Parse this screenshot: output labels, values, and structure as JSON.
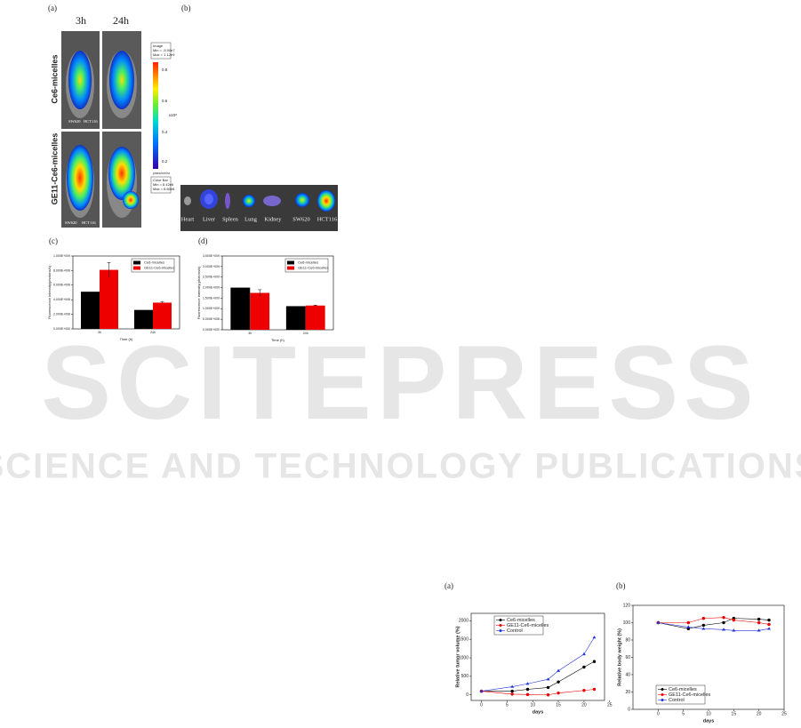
{
  "figure_a": {
    "label": "(a)",
    "columns": [
      "3h",
      "24h"
    ],
    "rows": [
      "Ce6-micelles",
      "GE11-Ce6-micelles"
    ],
    "tumor_labels": [
      "SW620",
      "HCT116"
    ],
    "image_box": [
      "Image",
      "Min = -5.90e7",
      "Max = 1.12e9"
    ],
    "colorbar_ticks": [
      "0.8",
      "0.6",
      "0.4",
      "0.2"
    ],
    "colorbar_unit": "x10⁸",
    "colorbar_caption": "p/sec/cm²/sr",
    "colorbar_box": [
      "Color Bar",
      "Min = 6.42e6",
      "Max = 8.60e8"
    ]
  },
  "figure_b": {
    "label": "(b)",
    "organs": [
      "Heart",
      "Liver",
      "Spleen",
      "Lung",
      "Kidney",
      "SW620",
      "HCT116"
    ]
  },
  "watermark": {
    "title": "SCITEPRESS",
    "subtitle": "SCIENCE AND TECHNOLOGY PUBLICATIONS"
  },
  "chart_data": [
    {
      "type": "bar",
      "title": "(c)",
      "categories": [
        "3h",
        "24h"
      ],
      "x_label": "Time (h)",
      "y_label": "Fluorescence intensity(photons/s)",
      "ylim": [
        0,
        1000000000
      ],
      "yticks": [
        {
          "value": 0,
          "label": "0.000E+000"
        },
        {
          "value": 200000000,
          "label": "2.000E+008"
        },
        {
          "value": 400000000,
          "label": "4.000E+008"
        },
        {
          "value": 600000000,
          "label": "6.000E+008"
        },
        {
          "value": 800000000,
          "label": "8.000E+008"
        },
        {
          "value": 1000000000,
          "label": "1.000E+009"
        }
      ],
      "legend": "upper right",
      "series": [
        {
          "name": "Ce6-micelles",
          "color": "#000000",
          "values": [
            510000000,
            260000000
          ]
        },
        {
          "name": "GE11-Ce6-micelles",
          "color": "#ee0000",
          "values": [
            810000000,
            360000000
          ],
          "errors": [
            100000000,
            10000000
          ]
        }
      ]
    },
    {
      "type": "bar",
      "title": "(d)",
      "categories": [
        "3h",
        "24h"
      ],
      "x_label": "Time (h)",
      "y_label": "Fluorescence intensity(photons/s)",
      "ylim": [
        0,
        3500000000
      ],
      "yticks": [
        {
          "value": 0,
          "label": "0.000E+000"
        },
        {
          "value": 500000000,
          "label": "5.000E+008"
        },
        {
          "value": 1000000000,
          "label": "1.000E+009"
        },
        {
          "value": 1500000000,
          "label": "1.500E+009"
        },
        {
          "value": 2000000000,
          "label": "2.000E+009"
        },
        {
          "value": 2500000000,
          "label": "2.500E+009"
        },
        {
          "value": 3000000000,
          "label": "3.000E+009"
        },
        {
          "value": 3500000000,
          "label": "3.500E+009"
        }
      ],
      "legend": "upper right",
      "series": [
        {
          "name": "Ce6-micelles",
          "color": "#000000",
          "values": [
            2000000000,
            1120000000
          ]
        },
        {
          "name": "GE11-Ce6-micelles",
          "color": "#ee0000",
          "values": [
            1750000000,
            1150000000
          ],
          "errors": [
            150000000,
            20000000
          ]
        }
      ]
    },
    {
      "type": "line",
      "title": "(a)",
      "x_label": "days",
      "y_label": "Relative tumor volume (%)",
      "x": [
        0,
        6,
        9,
        13,
        15,
        20,
        22
      ],
      "xlim": [
        -2,
        24
      ],
      "xticks": [
        0,
        5,
        10,
        15,
        20,
        25
      ],
      "ylim": [
        -150,
        2200
      ],
      "yticks": [
        0,
        500,
        1000,
        1500,
        2000
      ],
      "legend": "upper left",
      "series": [
        {
          "name": "Ce6-micelles",
          "color": "#000000",
          "values": [
            100,
            100,
            150,
            200,
            350,
            750,
            900
          ]
        },
        {
          "name": "GE11-Ce6-micelles",
          "color": "#ee0000",
          "values": [
            100,
            20,
            10,
            0,
            50,
            120,
            150
          ]
        },
        {
          "name": "Control",
          "color": "#2233dd",
          "values": [
            100,
            220,
            300,
            420,
            650,
            1100,
            1550
          ]
        }
      ]
    },
    {
      "type": "line",
      "title": "(b)",
      "x_label": "days",
      "y_label": "Relative body weight (%)",
      "x": [
        0,
        6,
        9,
        13,
        15,
        20,
        22
      ],
      "xlim": [
        -5,
        25
      ],
      "xticks": [
        0,
        5,
        10,
        15,
        20,
        25
      ],
      "ylim": [
        0,
        120
      ],
      "yticks": [
        0,
        20,
        40,
        60,
        80,
        100,
        120
      ],
      "legend": "lower left",
      "series": [
        {
          "name": "Ce6-micelles",
          "color": "#000000",
          "values": [
            100,
            93,
            97,
            100,
            105,
            104,
            103
          ]
        },
        {
          "name": "GE11-Ce6-micelles",
          "color": "#ee0000",
          "values": [
            100,
            100,
            105,
            106,
            103,
            100,
            98
          ]
        },
        {
          "name": "Control",
          "color": "#2233dd",
          "values": [
            100,
            95,
            93,
            92,
            91,
            91,
            93
          ]
        }
      ]
    }
  ]
}
